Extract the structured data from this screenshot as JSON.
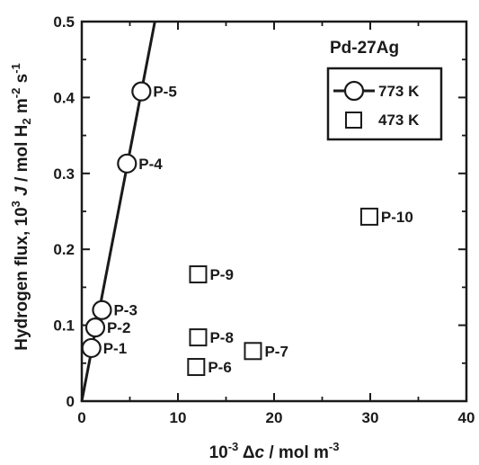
{
  "chart_data": {
    "type": "scatter",
    "title": "Pd-27Ag",
    "xlabel": {
      "prefix": "10",
      "exp": "-3",
      "mid": " Δ",
      "italic": "c",
      "rest": " / mol m",
      "exp2": "-3"
    },
    "ylabel": {
      "prefix": "Hydrogen flux, 10",
      "exp": "3",
      "mid": " ",
      "italic": "J",
      "rest": " / mol H",
      "sub": "2",
      "rest2": " m",
      "exp2": "-2",
      "rest3": " s",
      "exp3": "-1"
    },
    "xlim": [
      0,
      40
    ],
    "ylim": [
      0,
      0.5
    ],
    "xticks": [
      "0",
      "10",
      "20",
      "30",
      "40"
    ],
    "yticks": [
      "0",
      "0.1",
      "0.2",
      "0.3",
      "0.4",
      "0.5"
    ],
    "grid": false,
    "legend_position": "top-right",
    "series": [
      {
        "name": "773 K",
        "marker": "circle",
        "fit_line": true,
        "points": [
          {
            "label": "P-1",
            "x": 1.0,
            "y": 0.07
          },
          {
            "label": "P-2",
            "x": 1.4,
            "y": 0.097
          },
          {
            "label": "P-3",
            "x": 2.1,
            "y": 0.12
          },
          {
            "label": "P-4",
            "x": 4.7,
            "y": 0.313
          },
          {
            "label": "P-5",
            "x": 6.2,
            "y": 0.408
          }
        ]
      },
      {
        "name": "473 K",
        "marker": "square",
        "fit_line": false,
        "points": [
          {
            "label": "P-6",
            "x": 11.9,
            "y": 0.045
          },
          {
            "label": "P-7",
            "x": 17.8,
            "y": 0.066
          },
          {
            "label": "P-8",
            "x": 12.1,
            "y": 0.084
          },
          {
            "label": "P-9",
            "x": 12.1,
            "y": 0.167
          },
          {
            "label": "P-10",
            "x": 29.9,
            "y": 0.243
          }
        ]
      }
    ],
    "fit_line": {
      "series": "773 K",
      "x": [
        0,
        7.6
      ],
      "y": [
        0,
        0.5
      ]
    }
  }
}
